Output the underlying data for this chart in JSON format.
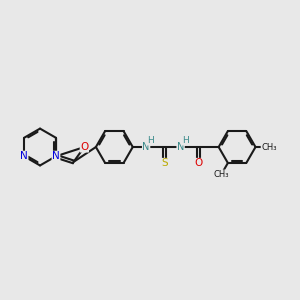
{
  "bg": "#e8e8e8",
  "bond_color": "#1a1a1a",
  "N_color": "#0000dd",
  "O_color": "#dd0000",
  "S_color": "#bbaa00",
  "NH_color": "#3a8a8a",
  "bond_lw": 1.5,
  "fs": 7.5,
  "figsize": [
    3.0,
    3.0
  ],
  "dpi": 100,
  "xlim": [
    0.0,
    10.0
  ],
  "ylim": [
    1.5,
    8.5
  ]
}
